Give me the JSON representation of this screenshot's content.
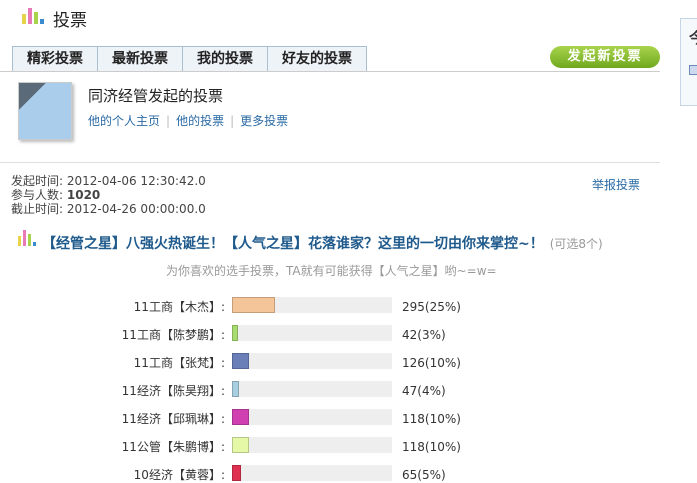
{
  "header": {
    "title": "投票",
    "logo_icon": "bar-chart-icon"
  },
  "tabs": [
    {
      "label": "精彩投票"
    },
    {
      "label": "最新投票"
    },
    {
      "label": "我的投票"
    },
    {
      "label": "好友的投票"
    }
  ],
  "new_poll_button": "发起新投票",
  "owner": {
    "title": "同济经管发起的投票",
    "links": [
      "他的个人主页",
      "他的投票",
      "更多投票"
    ]
  },
  "meta": {
    "start_label": "发起时间:",
    "start": "2012-04-06 12:30:42.0",
    "participants_label": "参与人数:",
    "participants": "1020",
    "end_label": "截止时间:",
    "end": "2012-04-26 00:00:00.0"
  },
  "report_link": "举报投票",
  "question": {
    "title": "【经管之星】八强火热诞生！【人气之星】花落谁家？这里的一切由你来掌控~！",
    "note": "(可选8个)",
    "subtitle": "为你喜欢的选手投票，TA就有可能获得【人气之星】哟~=w="
  },
  "options": [
    {
      "label": "11工商【木杰】:",
      "votes": 295,
      "percent": 25,
      "text": "295(25%)",
      "color": "#f5c59a"
    },
    {
      "label": "11工商【陈梦鹏】:",
      "votes": 42,
      "percent": 3,
      "text": "42(3%)",
      "color": "#a8dc70"
    },
    {
      "label": "11工商【张梵】:",
      "votes": 126,
      "percent": 10,
      "text": "126(10%)",
      "color": "#6a7fb8"
    },
    {
      "label": "11经济【陈昊翔】:",
      "votes": 47,
      "percent": 4,
      "text": "47(4%)",
      "color": "#a8cfe0"
    },
    {
      "label": "11经济【邱珮琳】:",
      "votes": 118,
      "percent": 10,
      "text": "118(10%)",
      "color": "#d040b0"
    },
    {
      "label": "11公管【朱鹏博】:",
      "votes": 118,
      "percent": 10,
      "text": "118(10%)",
      "color": "#e4f8a8"
    },
    {
      "label": "10经济【黄蓉】:",
      "votes": 65,
      "percent": 5,
      "text": "65(5%)",
      "color": "#e03050"
    }
  ],
  "side_panel": {
    "text": "今"
  }
}
